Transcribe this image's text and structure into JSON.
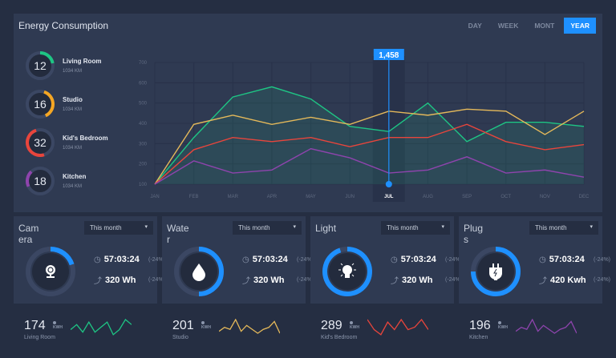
{
  "header": {
    "title": "Energy Consumption",
    "tabs": [
      "DAY",
      "WEEK",
      "MONT",
      "YEAR"
    ],
    "active_tab": "YEAR"
  },
  "rooms": [
    {
      "value": "12",
      "name": "Living Room",
      "sub": "1034 KM",
      "color": "#1ec584",
      "fraction": 0.22,
      "start": 0
    },
    {
      "value": "16",
      "name": "Studio",
      "sub": "1034 KM",
      "color": "#f5a623",
      "fraction": 0.38,
      "start": 0.05
    },
    {
      "value": "32",
      "name": "Kid's Bedroom",
      "sub": "1034 KM",
      "color": "#e8453c",
      "fraction": 0.5,
      "start": 0.45
    },
    {
      "value": "18",
      "name": "Kitchen",
      "sub": "1034 KM",
      "color": "#8e44ad",
      "fraction": 0.2,
      "start": 0.68
    }
  ],
  "chart_data": {
    "type": "line",
    "categories": [
      "JAN",
      "FEB",
      "MAR",
      "APR",
      "MAY",
      "JUN",
      "JUL",
      "AUG",
      "SEP",
      "OCT",
      "NOV",
      "DEC"
    ],
    "ylim": [
      100,
      700
    ],
    "yticks": [
      "100",
      "200",
      "300",
      "400",
      "500",
      "600",
      "700"
    ],
    "highlight": {
      "category": "JUL",
      "label": "1,458"
    },
    "grid": true,
    "series": [
      {
        "color": "#1ec584",
        "values": [
          100,
          330,
          530,
          580,
          520,
          385,
          360,
          500,
          310,
          405,
          405,
          385
        ],
        "fill": true
      },
      {
        "color": "#e5b95a",
        "values": [
          100,
          395,
          440,
          395,
          430,
          395,
          460,
          440,
          470,
          460,
          345,
          460
        ]
      },
      {
        "color": "#e8453c",
        "values": [
          100,
          270,
          330,
          310,
          330,
          285,
          330,
          330,
          395,
          310,
          270,
          295
        ]
      },
      {
        "color": "#8e44ad",
        "values": [
          100,
          215,
          155,
          170,
          275,
          230,
          155,
          170,
          235,
          155,
          170,
          135
        ]
      }
    ]
  },
  "cards": [
    {
      "label": "Camera",
      "select": "This month",
      "time": "57:03:24",
      "time_change": "(-24%)",
      "energy": "320 Wh",
      "energy_change": "(-24%)",
      "icon": "webcam",
      "fraction": 0.2,
      "start": 0
    },
    {
      "label": "Water",
      "select": "This month",
      "time": "57:03:24",
      "time_change": "(-24%)",
      "energy": "320 Wh",
      "energy_change": "(-24%)",
      "icon": "water-drop",
      "fraction": 0.5,
      "start": 0
    },
    {
      "label": "Light",
      "select": "This month",
      "time": "57:03:24",
      "time_change": "(-24%)",
      "energy": "320 Wh",
      "energy_change": "(-24%)",
      "icon": "lightbulb",
      "fraction": 0.95,
      "start": 0
    },
    {
      "label": "Plugs",
      "select": "This month",
      "time": "57:03:24",
      "time_change": "(-24%)",
      "energy": "420 Kwh",
      "energy_change": "(-24%)",
      "icon": "plug",
      "fraction": 0.75,
      "start": 0
    }
  ],
  "bottom": [
    {
      "value": "174",
      "unit": "KWH",
      "name": "Living Room",
      "color": "#1ec584",
      "spark": [
        3,
        5,
        2,
        6,
        2,
        4,
        6,
        1,
        3,
        7,
        5
      ]
    },
    {
      "value": "201",
      "unit": "KWH",
      "name": "Studio",
      "color": "#e5b95a",
      "spark": [
        3,
        5,
        4,
        9,
        3,
        6,
        4,
        2,
        4,
        5,
        8,
        2
      ]
    },
    {
      "value": "289",
      "unit": "KWH",
      "name": "Kid's Bedroom",
      "color": "#e8453c",
      "spark": [
        7,
        3,
        1,
        6,
        3,
        7,
        3,
        4,
        7,
        3
      ]
    },
    {
      "value": "196",
      "unit": "KWH",
      "name": "Kitchen",
      "color": "#8e44ad",
      "spark": [
        3,
        5,
        4,
        9,
        3,
        6,
        4,
        2,
        4,
        5,
        8,
        2
      ]
    }
  ]
}
